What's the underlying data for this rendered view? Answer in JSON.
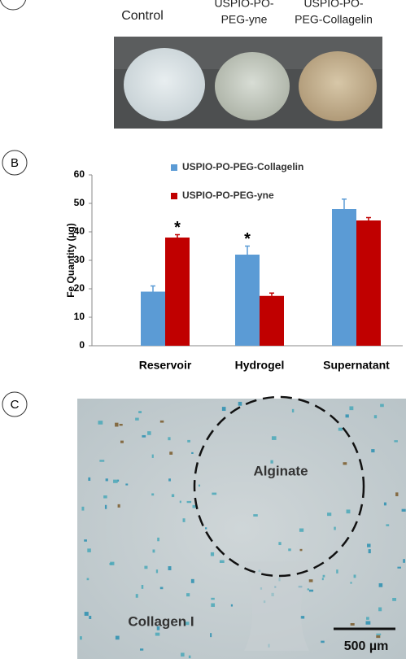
{
  "panel_a": {
    "labels": [
      [
        "Control"
      ],
      [
        "USPIO-PO-",
        "PEG-yne"
      ],
      [
        "USPIO-PO-",
        "PEG-Collagelin"
      ]
    ]
  },
  "panel_b": {
    "letter": "B"
  },
  "panel_c": {
    "letter": "C",
    "region_labels": [
      "Alginate",
      "Collagen I"
    ],
    "scale_bar": "500 µm"
  },
  "chart_data": {
    "type": "bar",
    "ylabel": "Fe Quantity (µg)",
    "categories": [
      "Reservoir",
      "Hydrogel",
      "Supernatant"
    ],
    "series": [
      {
        "name": "USPIO-PO-PEG-Collagelin",
        "color": "#5b9bd5",
        "values": [
          19,
          32,
          48
        ],
        "errors": [
          2,
          3,
          3.5
        ]
      },
      {
        "name": "USPIO-PO-PEG-yne",
        "color": "#c00000",
        "values": [
          38,
          17.5,
          44
        ],
        "errors": [
          1,
          1,
          1
        ]
      }
    ],
    "ylim": [
      0,
      60
    ],
    "yticks": [
      0,
      10,
      20,
      30,
      40,
      50,
      60
    ],
    "annotations": [
      "*",
      "*"
    ]
  }
}
